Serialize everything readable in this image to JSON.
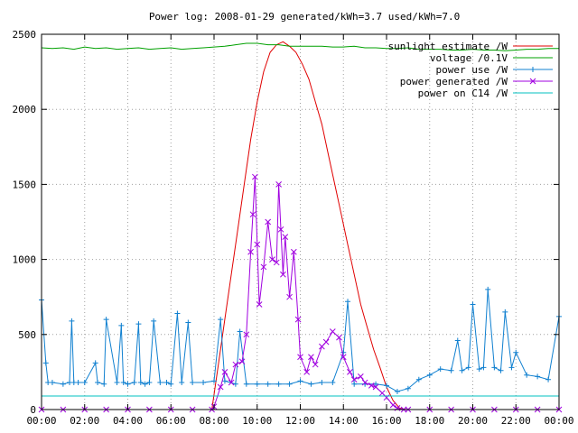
{
  "chart_data": {
    "type": "line",
    "title": "Power log: 2008-01-29 generated/kWh=3.7 used/kWh=7.0",
    "xlabel": "",
    "ylabel": "",
    "xlim": [
      0,
      24
    ],
    "ylim": [
      0,
      2500
    ],
    "grid": true,
    "legend_position": "top-right",
    "x_ticks": [
      "00:00",
      "02:00",
      "04:00",
      "06:00",
      "08:00",
      "10:00",
      "12:00",
      "14:00",
      "16:00",
      "18:00",
      "20:00",
      "22:00",
      "00:00"
    ],
    "y_ticks": [
      "0",
      "500",
      "1000",
      "1500",
      "2000",
      "2500"
    ],
    "series": [
      {
        "name": "sunlight estimate /W",
        "color": "#e00000",
        "marker": "none",
        "x": [
          7.9,
          8.2,
          8.5,
          8.8,
          9.1,
          9.4,
          9.7,
          10.0,
          10.3,
          10.6,
          10.9,
          11.2,
          11.5,
          11.8,
          12.1,
          12.4,
          12.7,
          13.0,
          13.3,
          13.6,
          13.9,
          14.2,
          14.5,
          14.8,
          15.1,
          15.4,
          15.7,
          16.0,
          16.3,
          16.6,
          16.9,
          17.0
        ],
        "y": [
          0,
          300,
          600,
          900,
          1200,
          1500,
          1800,
          2050,
          2250,
          2380,
          2430,
          2450,
          2420,
          2380,
          2300,
          2200,
          2050,
          1900,
          1700,
          1500,
          1300,
          1100,
          900,
          700,
          550,
          400,
          280,
          150,
          60,
          10,
          0,
          0
        ]
      },
      {
        "name": "voltage /0.1V",
        "color": "#00a000",
        "marker": "none",
        "x": [
          0,
          0.5,
          1.0,
          1.5,
          2.0,
          2.5,
          3.0,
          3.5,
          4.0,
          4.5,
          5.0,
          5.5,
          6.0,
          6.5,
          7.0,
          7.5,
          8.0,
          8.5,
          9.0,
          9.5,
          10.0,
          10.5,
          11.0,
          11.5,
          12.0,
          12.5,
          13.0,
          13.5,
          14.0,
          14.5,
          15.0,
          15.5,
          16.0,
          16.5,
          17.0,
          17.5,
          18.0,
          18.5,
          19.0,
          19.5,
          20.0,
          20.5,
          21.0,
          21.5,
          22.0,
          22.5,
          23.0,
          23.5,
          24.0
        ],
        "y": [
          2410,
          2405,
          2410,
          2400,
          2415,
          2405,
          2410,
          2400,
          2405,
          2410,
          2400,
          2405,
          2410,
          2400,
          2405,
          2410,
          2415,
          2420,
          2430,
          2440,
          2440,
          2430,
          2430,
          2420,
          2420,
          2420,
          2420,
          2415,
          2415,
          2420,
          2410,
          2410,
          2405,
          2405,
          2410,
          2400,
          2400,
          2400,
          2395,
          2395,
          2400,
          2395,
          2395,
          2390,
          2395,
          2400,
          2400,
          2405,
          2405
        ]
      },
      {
        "name": "power use /W",
        "color": "#1080d0",
        "marker": "plus",
        "x": [
          0,
          0.2,
          0.3,
          0.5,
          1.0,
          1.3,
          1.4,
          1.5,
          1.7,
          2.0,
          2.5,
          2.6,
          2.9,
          3.0,
          3.5,
          3.7,
          3.8,
          4.0,
          4.3,
          4.5,
          4.6,
          4.8,
          5.0,
          5.2,
          5.5,
          5.8,
          6.0,
          6.3,
          6.5,
          6.8,
          7.0,
          7.5,
          8.0,
          8.3,
          8.5,
          9.0,
          9.2,
          9.5,
          10.0,
          10.5,
          11.0,
          11.5,
          12.0,
          12.5,
          13.0,
          13.5,
          14.0,
          14.2,
          14.5,
          15.0,
          15.5,
          16.0,
          16.5,
          17.0,
          17.5,
          18.0,
          18.5,
          19.0,
          19.3,
          19.5,
          19.8,
          20.0,
          20.3,
          20.5,
          20.7,
          21.0,
          21.3,
          21.5,
          21.8,
          22.0,
          22.5,
          23.0,
          23.5,
          24.0
        ],
        "y": [
          730,
          310,
          180,
          180,
          170,
          180,
          590,
          180,
          180,
          180,
          310,
          180,
          170,
          600,
          180,
          560,
          180,
          170,
          180,
          570,
          180,
          170,
          180,
          590,
          180,
          180,
          170,
          640,
          180,
          580,
          180,
          180,
          190,
          600,
          190,
          170,
          520,
          170,
          170,
          170,
          170,
          170,
          190,
          170,
          180,
          180,
          380,
          720,
          170,
          170,
          170,
          160,
          120,
          140,
          200,
          230,
          270,
          260,
          460,
          260,
          280,
          700,
          270,
          280,
          800,
          280,
          260,
          650,
          280,
          380,
          230,
          220,
          200,
          620
        ]
      },
      {
        "name": "power generated /W",
        "color": "#a000e0",
        "marker": "cross",
        "x": [
          0,
          1,
          2,
          3,
          4,
          5,
          6,
          7,
          7.9,
          8.0,
          8.3,
          8.5,
          8.8,
          9.0,
          9.3,
          9.5,
          9.7,
          9.8,
          9.9,
          10.0,
          10.1,
          10.3,
          10.5,
          10.7,
          10.9,
          11.0,
          11.1,
          11.2,
          11.3,
          11.5,
          11.7,
          11.9,
          12.0,
          12.3,
          12.5,
          12.7,
          13.0,
          13.2,
          13.5,
          13.8,
          14.0,
          14.3,
          14.5,
          14.8,
          15.0,
          15.3,
          15.5,
          15.8,
          16.0,
          16.3,
          16.5,
          16.8,
          17.0,
          18.0,
          19.0,
          20.0,
          21.0,
          22.0,
          23.0,
          24.0
        ],
        "y": [
          0,
          0,
          0,
          0,
          0,
          0,
          0,
          0,
          0,
          20,
          150,
          250,
          180,
          300,
          320,
          500,
          1050,
          1300,
          1550,
          1100,
          700,
          950,
          1250,
          1000,
          980,
          1500,
          1200,
          900,
          1150,
          750,
          1050,
          600,
          350,
          250,
          350,
          300,
          420,
          450,
          520,
          480,
          350,
          250,
          200,
          220,
          180,
          160,
          150,
          110,
          80,
          30,
          10,
          0,
          0,
          0,
          0,
          0,
          0,
          0,
          0,
          0
        ]
      },
      {
        "name": "power on C14 /W",
        "color": "#00c0c0",
        "marker": "none",
        "x": [
          0,
          2,
          4,
          6,
          8,
          10,
          12,
          14,
          16,
          18,
          20,
          22,
          24
        ],
        "y": [
          90,
          90,
          90,
          90,
          90,
          90,
          90,
          90,
          90,
          90,
          90,
          90,
          90
        ]
      }
    ]
  }
}
